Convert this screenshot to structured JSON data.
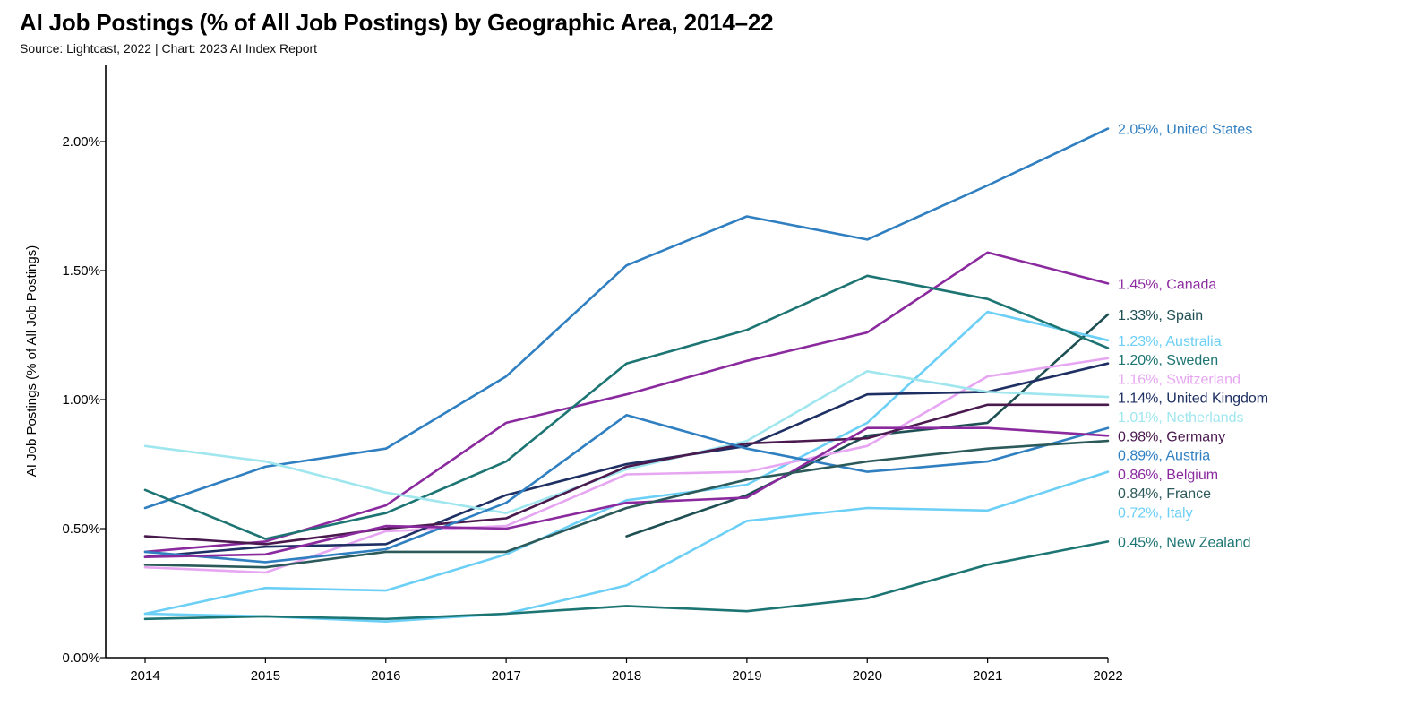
{
  "title": "AI Job Postings (% of All Job Postings) by Geographic Area, 2014–22",
  "subtitle": "Source: Lightcast, 2022 | Chart: 2023 AI Index Report",
  "chart_data": {
    "type": "line",
    "title": "AI Job Postings (% of All Job Postings) by Geographic Area, 2014–22",
    "xlabel": "",
    "ylabel": "AI Job Postings (% of All Job Postings)",
    "x": [
      "2014",
      "2015",
      "2016",
      "2017",
      "2018",
      "2019",
      "2020",
      "2021",
      "2022"
    ],
    "ylim": [
      0,
      2.3
    ],
    "yticks": [
      {
        "value": 0,
        "label": "0.00%"
      },
      {
        "value": 0.5,
        "label": "0.50%"
      },
      {
        "value": 1.0,
        "label": "1.00%"
      },
      {
        "value": 1.5,
        "label": "1.50%"
      },
      {
        "value": 2.0,
        "label": "2.00%"
      }
    ],
    "grid": false,
    "legend": "end-of-line labels",
    "series": [
      {
        "name": "United States",
        "end_label": "2.05%, United States",
        "color": "#2f7fc1",
        "values": [
          0.58,
          0.74,
          0.81,
          1.09,
          1.52,
          1.71,
          1.62,
          1.83,
          2.05
        ]
      },
      {
        "name": "Canada",
        "end_label": "1.45%, Canada",
        "color": "#8a2a9e",
        "values": [
          0.41,
          0.45,
          0.59,
          0.91,
          1.02,
          1.15,
          1.26,
          1.57,
          1.45
        ]
      },
      {
        "name": "Spain",
        "end_label": "1.33%, Spain",
        "color": "#1e4f52",
        "values": [
          null,
          null,
          null,
          null,
          0.47,
          0.63,
          0.86,
          0.91,
          1.33
        ]
      },
      {
        "name": "Australia",
        "end_label": "1.23%, Australia",
        "color": "#6ccff6",
        "values": [
          0.17,
          0.27,
          0.26,
          0.4,
          0.61,
          0.67,
          0.91,
          1.34,
          1.23
        ]
      },
      {
        "name": "Sweden",
        "end_label": "1.20%, Sweden",
        "color": "#1d7573",
        "values": [
          0.65,
          0.46,
          0.56,
          0.76,
          1.14,
          1.27,
          1.48,
          1.39,
          1.2
        ]
      },
      {
        "name": "Switzerland",
        "end_label": "1.16%, Switzerland",
        "color": "#e7a6f2",
        "values": [
          0.35,
          0.33,
          0.49,
          0.51,
          0.71,
          0.72,
          0.82,
          1.09,
          1.16
        ]
      },
      {
        "name": "United Kingdom",
        "end_label": "1.14%, United Kingdom",
        "color": "#1e2f63",
        "values": [
          0.39,
          0.43,
          0.44,
          0.63,
          0.75,
          0.82,
          1.02,
          1.03,
          1.14
        ]
      },
      {
        "name": "Netherlands",
        "end_label": "1.01%, Netherlands",
        "color": "#9fe6ee",
        "values": [
          0.82,
          0.76,
          0.64,
          0.56,
          0.73,
          0.84,
          1.11,
          1.03,
          1.01
        ]
      },
      {
        "name": "Germany",
        "end_label": "0.98%, Germany",
        "color": "#4a1a4f",
        "values": [
          0.47,
          0.44,
          0.5,
          0.54,
          0.74,
          0.83,
          0.85,
          0.98,
          0.98
        ]
      },
      {
        "name": "Austria",
        "end_label": "0.89%, Austria",
        "color": "#2f7fc1",
        "values": [
          0.41,
          0.37,
          0.42,
          0.6,
          0.94,
          0.81,
          0.72,
          0.76,
          0.89
        ]
      },
      {
        "name": "Belgium",
        "end_label": "0.86%, Belgium",
        "color": "#8a2a9e",
        "values": [
          0.39,
          0.4,
          0.51,
          0.5,
          0.6,
          0.62,
          0.89,
          0.89,
          0.86
        ]
      },
      {
        "name": "France",
        "end_label": "0.84%, France",
        "color": "#2c5a5a",
        "values": [
          0.36,
          0.35,
          0.41,
          0.41,
          0.58,
          0.69,
          0.76,
          0.81,
          0.84
        ]
      },
      {
        "name": "Italy",
        "end_label": "0.72%, Italy",
        "color": "#6ccff6",
        "values": [
          0.17,
          0.16,
          0.14,
          0.17,
          0.28,
          0.53,
          0.58,
          0.57,
          0.72
        ]
      },
      {
        "name": "New Zealand",
        "end_label": "0.45%, New Zealand",
        "color": "#1d7573",
        "values": [
          0.15,
          0.16,
          0.15,
          0.17,
          0.2,
          0.18,
          0.23,
          0.36,
          0.45
        ]
      }
    ],
    "end_label_values": [
      2.05,
      1.45,
      1.33,
      1.23,
      1.2,
      1.16,
      1.14,
      1.01,
      0.98,
      0.89,
      0.86,
      0.84,
      0.72,
      0.45
    ]
  }
}
